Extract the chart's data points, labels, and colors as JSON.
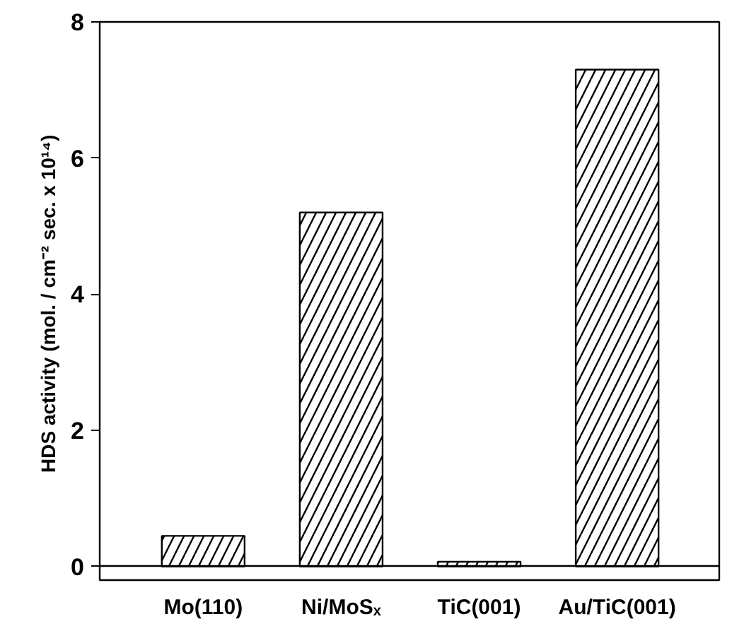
{
  "chart_data": {
    "type": "bar",
    "categories": [
      "Mo(110)",
      "Ni/MoSₓ",
      "TiC(001)",
      "Au/TiC(001)"
    ],
    "values": [
      0.45,
      5.2,
      0.07,
      7.3
    ],
    "color": "#000000",
    "ylabel": "HDS activity (mol.  / cm⁻² sec. x 10¹⁴)",
    "ylim": [
      -0.2,
      8
    ],
    "yticks": [
      0,
      2,
      4,
      6,
      8
    ],
    "grid": false
  }
}
